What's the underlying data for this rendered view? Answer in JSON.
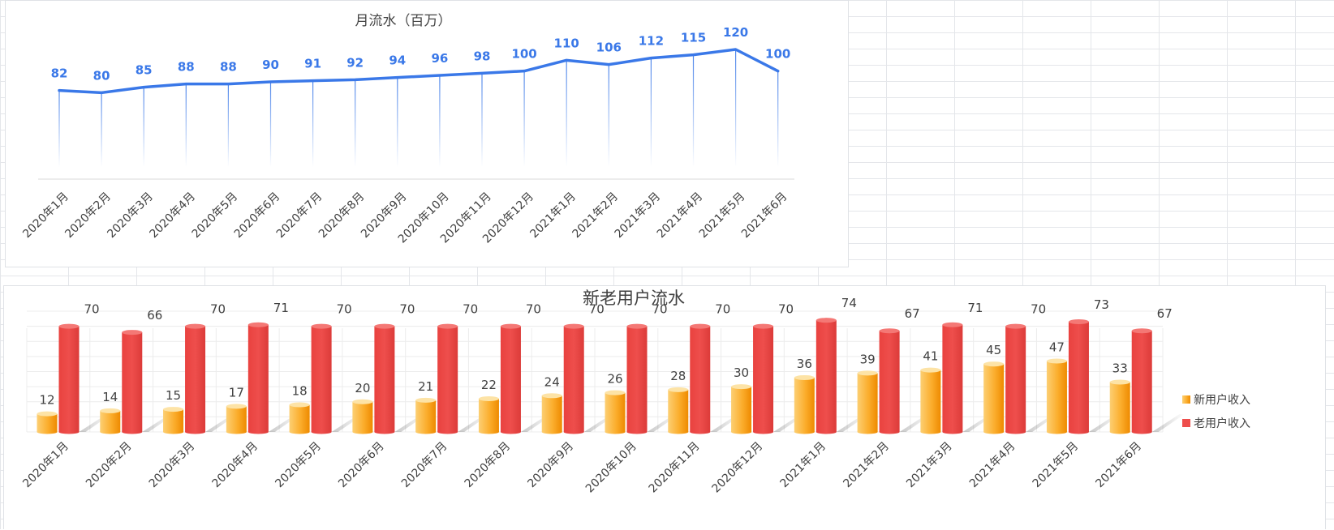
{
  "chart_data": [
    {
      "type": "line",
      "title": "月流水（百万）",
      "categories": [
        "2020年1月",
        "2020年2月",
        "2020年3月",
        "2020年4月",
        "2020年5月",
        "2020年6月",
        "2020年7月",
        "2020年8月",
        "2020年9月",
        "2020年10月",
        "2020年11月",
        "2020年12月",
        "2021年1月",
        "2021年2月",
        "2021年3月",
        "2021年4月",
        "2021年5月",
        "2021年6月"
      ],
      "series": [
        {
          "values": [
            82,
            80,
            85,
            88,
            88,
            90,
            91,
            92,
            94,
            96,
            98,
            100,
            110,
            106,
            112,
            115,
            120,
            100
          ]
        }
      ],
      "ylim": [
        0,
        165
      ],
      "grid": false,
      "legend": "none",
      "colors": {
        "line": "#3a78e8",
        "drop_line": "#3a78e8"
      }
    },
    {
      "type": "bar",
      "title": "新老用户流水",
      "categories": [
        "2020年1月",
        "2020年2月",
        "2020年3月",
        "2020年4月",
        "2020年5月",
        "2020年6月",
        "2020年7月",
        "2020年8月",
        "2020年9月",
        "2020年10月",
        "2020年11月",
        "2020年12月",
        "2021年1月",
        "2021年2月",
        "2021年3月",
        "2021年4月",
        "2021年5月",
        "2021年6月"
      ],
      "series": [
        {
          "name": "新用户收入",
          "values": [
            12,
            14,
            15,
            17,
            18,
            20,
            21,
            22,
            24,
            26,
            28,
            30,
            36,
            39,
            41,
            45,
            47,
            33
          ],
          "color": "#f7a21a"
        },
        {
          "name": "老用户收入",
          "values": [
            70,
            66,
            70,
            71,
            70,
            70,
            70,
            70,
            70,
            70,
            70,
            70,
            74,
            67,
            71,
            70,
            73,
            67
          ],
          "color": "#ee4e4c"
        }
      ],
      "ylim": [
        0,
        80
      ],
      "grid": true,
      "legend": "right"
    }
  ]
}
